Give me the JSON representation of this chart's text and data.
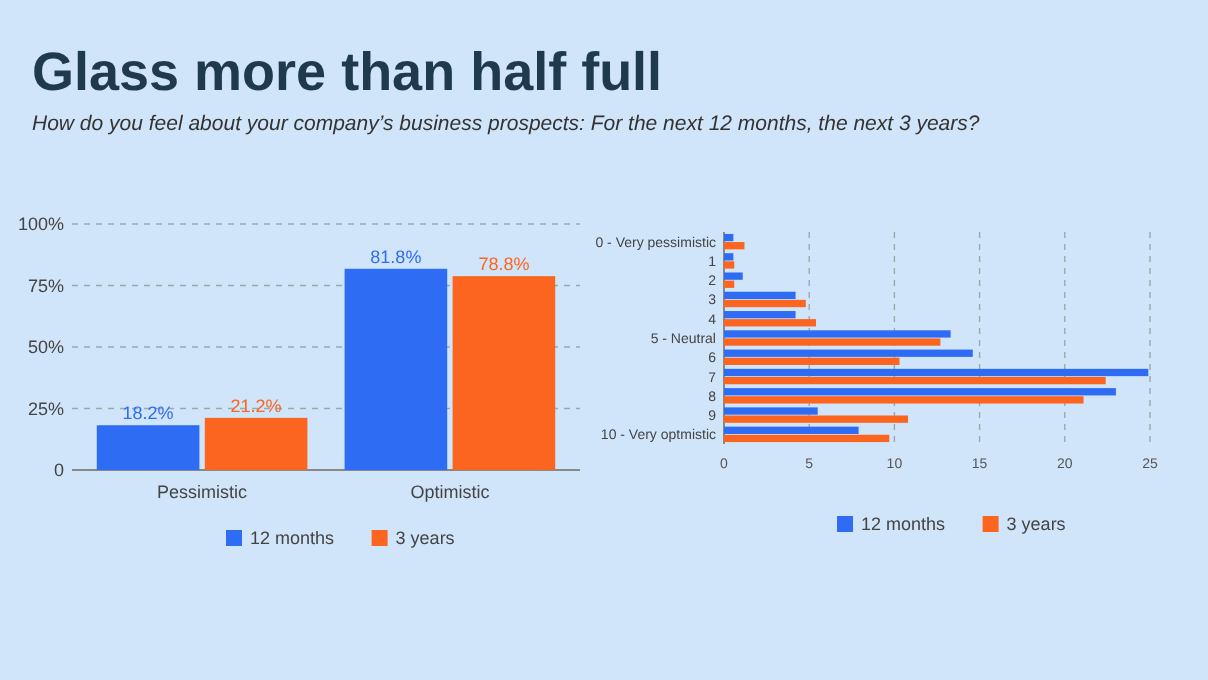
{
  "chart_data": [
    {
      "type": "bar",
      "title": "Glass more than half full",
      "subtitle": "How do you feel about your company’s business prospects: For the next 12 months, the next 3 years?",
      "categories": [
        "Pessimistic",
        "Optimistic"
      ],
      "series": [
        {
          "name": "12 months",
          "color": "#2f6cf4",
          "values": [
            18.2,
            81.8
          ],
          "value_labels": [
            "18.2%",
            "81.8%"
          ]
        },
        {
          "name": "3 years",
          "color": "#fb6520",
          "values": [
            21.2,
            78.8
          ],
          "value_labels": [
            "21.2%",
            "78.8%"
          ]
        }
      ],
      "ylim": [
        0,
        100
      ],
      "yticks": [
        {
          "value": 0,
          "label": "0"
        },
        {
          "value": 25,
          "label": "25%"
        },
        {
          "value": 50,
          "label": "50%"
        },
        {
          "value": 75,
          "label": "75%"
        },
        {
          "value": 100,
          "label": "100%"
        }
      ],
      "grid": "y",
      "legend": "bottom"
    },
    {
      "type": "bar",
      "orientation": "horizontal",
      "categories": [
        "0 - Very pessimistic",
        "1",
        "2",
        "3",
        "4",
        "5 - Neutral",
        "6",
        "7",
        "8",
        "9",
        "10 - Very optmistic"
      ],
      "series": [
        {
          "name": "12 months",
          "color": "#2f6cf4",
          "values": [
            0.55,
            0.55,
            1.1,
            4.2,
            4.2,
            13.3,
            14.6,
            24.9,
            23.0,
            5.5,
            7.9
          ]
        },
        {
          "name": "3 years",
          "color": "#fb6520",
          "values": [
            1.2,
            0.6,
            0.6,
            4.8,
            5.4,
            12.7,
            10.3,
            22.4,
            21.1,
            10.8,
            9.7
          ]
        }
      ],
      "xlim": [
        0,
        25
      ],
      "xticks": [
        0,
        5,
        10,
        15,
        20,
        25
      ],
      "grid": "x",
      "legend": "bottom"
    }
  ]
}
